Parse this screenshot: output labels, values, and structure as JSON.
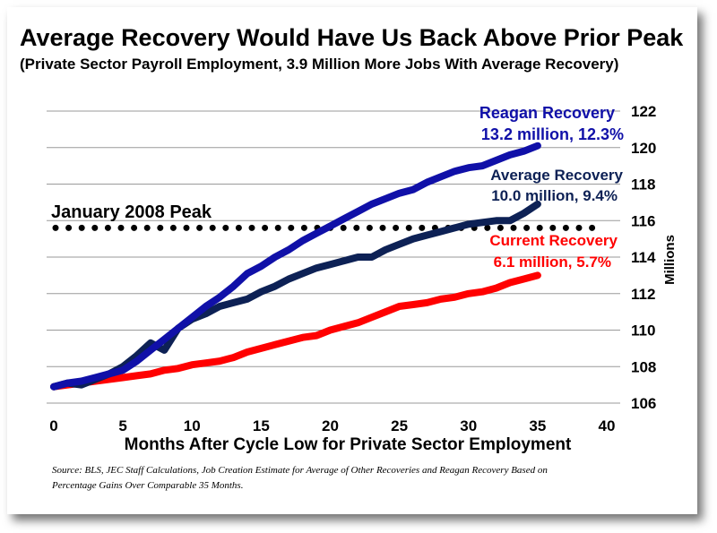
{
  "chart_data": {
    "type": "line",
    "title": "Average Recovery Would Have Us Back Above Prior Peak",
    "subtitle": "(Private Sector Payroll Employment, 3.9 Million More Jobs With Average Recovery)",
    "xlabel": "Months After Cycle Low for Private Sector Employment",
    "ylabel": "Millions",
    "xlim": [
      0,
      40
    ],
    "ylim": [
      106,
      122
    ],
    "x_ticks": [
      "0",
      "5",
      "10",
      "15",
      "20",
      "25",
      "30",
      "35",
      "40"
    ],
    "y_ticks": [
      "106",
      "108",
      "110",
      "112",
      "114",
      "116",
      "118",
      "120",
      "122"
    ],
    "grid": true,
    "source": "Source:  BLS, JEC Staff Calculations,  Job Creation Estimate for Average of Other Recoveries and Reagan Recovery Based on Percentage Gains Over Comparable 35 Months.",
    "reference_line": {
      "label": "January 2008 Peak",
      "value": 115.6
    },
    "series": [
      {
        "name": "Reagan Recovery",
        "label_line1": "Reagan Recovery",
        "label_line2": "13.2 million, 12.3%",
        "color": "#1010a8",
        "x": [
          0,
          1,
          2,
          3,
          4,
          5,
          6,
          7,
          8,
          9,
          10,
          11,
          12,
          13,
          14,
          15,
          16,
          17,
          18,
          19,
          20,
          21,
          22,
          23,
          24,
          25,
          26,
          27,
          28,
          29,
          30,
          31,
          32,
          33,
          34,
          35
        ],
        "values": [
          106.9,
          107.1,
          107.2,
          107.4,
          107.6,
          107.8,
          108.3,
          108.9,
          109.5,
          110.1,
          110.7,
          111.3,
          111.8,
          112.4,
          113.1,
          113.5,
          114.0,
          114.4,
          114.9,
          115.3,
          115.7,
          116.1,
          116.5,
          116.9,
          117.2,
          117.5,
          117.7,
          118.1,
          118.4,
          118.7,
          118.9,
          119.0,
          119.3,
          119.6,
          119.8,
          120.1
        ]
      },
      {
        "name": "Average Recovery",
        "label_line1": "Average Recovery",
        "label_line2": "10.0 million, 9.4%",
        "color": "#0d2155",
        "x": [
          0,
          1,
          2,
          3,
          4,
          5,
          6,
          7,
          8,
          9,
          10,
          11,
          12,
          13,
          14,
          15,
          16,
          17,
          18,
          19,
          20,
          21,
          22,
          23,
          24,
          25,
          26,
          27,
          28,
          29,
          30,
          31,
          32,
          33,
          34,
          35
        ],
        "values": [
          106.9,
          107.1,
          107.0,
          107.3,
          107.6,
          108.0,
          108.6,
          109.3,
          108.9,
          110.1,
          110.6,
          110.9,
          111.3,
          111.5,
          111.7,
          112.1,
          112.4,
          112.8,
          113.1,
          113.4,
          113.6,
          113.8,
          114.0,
          114.0,
          114.4,
          114.7,
          115.0,
          115.2,
          115.4,
          115.6,
          115.8,
          115.9,
          116.0,
          116.0,
          116.4,
          116.9
        ]
      },
      {
        "name": "Current Recovery",
        "label_line1": "Current Recovery",
        "label_line2": "6.1 million, 5.7%",
        "color": "#ff0000",
        "x": [
          0,
          1,
          2,
          3,
          4,
          5,
          6,
          7,
          8,
          9,
          10,
          11,
          12,
          13,
          14,
          15,
          16,
          17,
          18,
          19,
          20,
          21,
          22,
          23,
          24,
          25,
          26,
          27,
          28,
          29,
          30,
          31,
          32,
          33,
          34,
          35
        ],
        "values": [
          106.9,
          107.0,
          107.1,
          107.2,
          107.3,
          107.4,
          107.5,
          107.6,
          107.8,
          107.9,
          108.1,
          108.2,
          108.3,
          108.5,
          108.8,
          109.0,
          109.2,
          109.4,
          109.6,
          109.7,
          110.0,
          110.2,
          110.4,
          110.7,
          111.0,
          111.3,
          111.4,
          111.5,
          111.7,
          111.8,
          112.0,
          112.1,
          112.3,
          112.6,
          112.8,
          113.0
        ]
      }
    ]
  }
}
